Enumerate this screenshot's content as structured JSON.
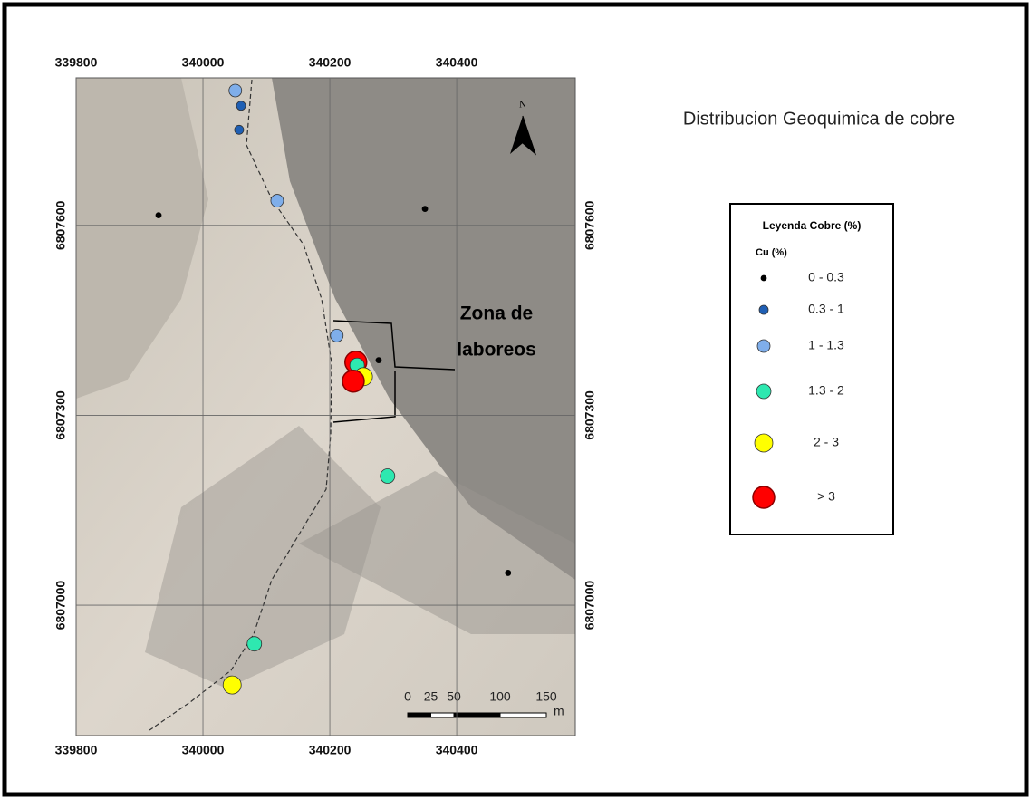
{
  "map": {
    "title": "Distribucion Geoquimica de cobre",
    "xlim": [
      339800,
      340587
    ],
    "ylim": [
      6806794,
      6807833
    ],
    "xticks": [
      339800,
      340000,
      340200,
      340400
    ],
    "yticks": [
      6807000,
      6807300,
      6807600
    ],
    "grid": true,
    "north": "N",
    "annotation": [
      "Zona de",
      "laboreos"
    ],
    "legend": {
      "title": "Leyenda Cobre (%)",
      "subtitle": "Cu (%)",
      "classes": [
        {
          "label": "0  -  0.3",
          "color": "#000000"
        },
        {
          "label": "0.3  -  1",
          "color": "#1f5fb4"
        },
        {
          "label": "1  -  1.3",
          "color": "#7faeea"
        },
        {
          "label": "1.3  -  2",
          "color": "#2ee8b0"
        },
        {
          "label": "2  -  3",
          "color": "#ffff00"
        },
        {
          "label": "> 3",
          "color": "#ff0000"
        }
      ]
    },
    "points": [
      {
        "x": 340051,
        "y": 6807813,
        "class": 2
      },
      {
        "x": 340060,
        "y": 6807789,
        "class": 1
      },
      {
        "x": 340057,
        "y": 6807751,
        "class": 1
      },
      {
        "x": 340117,
        "y": 6807639,
        "class": 2
      },
      {
        "x": 339930,
        "y": 6807616,
        "class": 0
      },
      {
        "x": 340350,
        "y": 6807626,
        "class": 0
      },
      {
        "x": 340211,
        "y": 6807426,
        "class": 2
      },
      {
        "x": 340241,
        "y": 6807384,
        "class": 5
      },
      {
        "x": 340243,
        "y": 6807379,
        "class": 3
      },
      {
        "x": 340277,
        "y": 6807387,
        "class": 0
      },
      {
        "x": 340253,
        "y": 6807361,
        "class": 4
      },
      {
        "x": 340237,
        "y": 6807354,
        "class": 5
      },
      {
        "x": 340291,
        "y": 6807204,
        "class": 3
      },
      {
        "x": 340481,
        "y": 6807051,
        "class": 0
      },
      {
        "x": 340081,
        "y": 6806939,
        "class": 3
      },
      {
        "x": 340046,
        "y": 6806874,
        "class": 4
      }
    ],
    "scalebar": {
      "ticks": [
        0,
        25,
        50,
        100,
        150
      ],
      "unit": "m"
    }
  }
}
